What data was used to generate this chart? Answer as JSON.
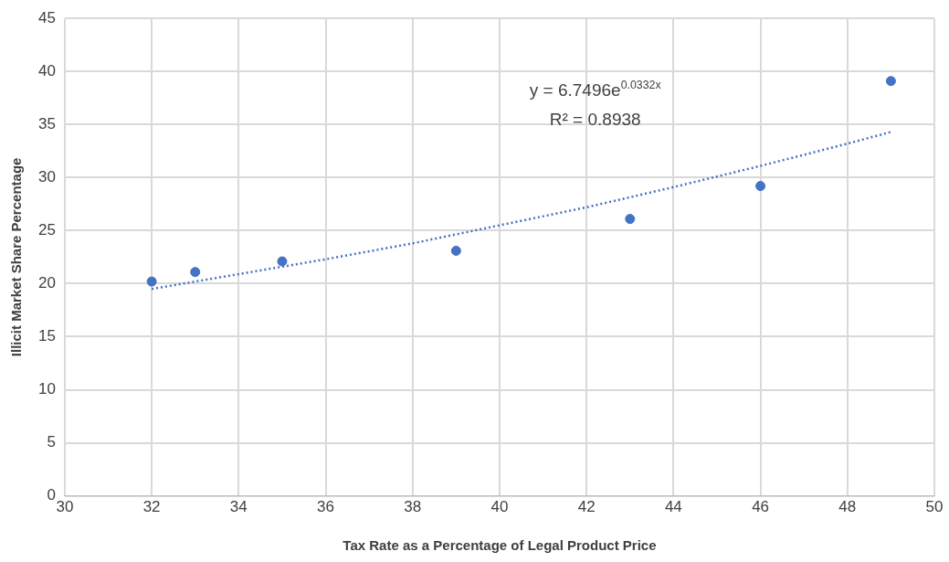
{
  "chart_data": {
    "type": "scatter",
    "xlabel": "Tax Rate as a Percentage of Legal Product Price",
    "ylabel": "Illicit Market Share Percentage",
    "x": [
      32,
      33,
      35,
      39,
      43,
      46,
      49
    ],
    "series": [
      {
        "type": "scatter",
        "color": "#4472c4",
        "marker": "circle",
        "values": [
          20.2,
          21.1,
          22.1,
          23.1,
          26.1,
          29.2,
          39.1
        ]
      },
      {
        "type": "line",
        "color": "#4472c4",
        "line_style": "dotted",
        "marker": "none",
        "x": [
          32,
          34,
          36,
          38,
          40,
          42,
          44,
          46,
          48,
          49
        ],
        "values": [
          19.5,
          20.9,
          22.3,
          23.8,
          25.5,
          27.2,
          29.1,
          31.1,
          33.2,
          34.3
        ]
      }
    ],
    "xlim": [
      30,
      50
    ],
    "xticks": [
      30,
      32,
      34,
      36,
      38,
      40,
      42,
      44,
      46,
      48,
      50
    ],
    "ylim": [
      0,
      45
    ],
    "yticks": [
      0,
      5,
      10,
      15,
      20,
      25,
      30,
      35,
      40,
      45
    ],
    "grid": true,
    "legend": false,
    "annotations": [
      "y = 6.7496e$^{0.0332x}$",
      "R² = 0.8938"
    ]
  }
}
